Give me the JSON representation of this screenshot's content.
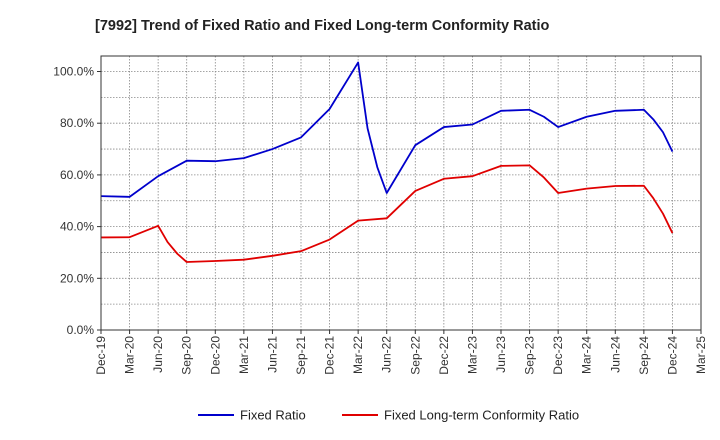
{
  "chart_data": {
    "type": "line",
    "title": "[7992]  Trend of Fixed Ratio and Fixed Long-term Conformity Ratio",
    "xlabel": "",
    "ylabel": "",
    "x_tick_labels": [
      "Dec-19",
      "Mar-20",
      "Jun-20",
      "Sep-20",
      "Dec-20",
      "Mar-21",
      "Jun-21",
      "Sep-21",
      "Dec-21",
      "Mar-22",
      "Jun-22",
      "Sep-22",
      "Dec-22",
      "Mar-23",
      "Jun-23",
      "Sep-23",
      "Dec-23",
      "Mar-24",
      "Jun-24",
      "Sep-24",
      "Dec-24",
      "Mar-25"
    ],
    "y_tick_labels": [
      "0.0%",
      "20.0%",
      "40.0%",
      "60.0%",
      "80.0%",
      "100.0%"
    ],
    "y_ticks": [
      0,
      20,
      40,
      60,
      80,
      100
    ],
    "ylim": [
      0,
      106
    ],
    "grid": true,
    "legend_position": "bottom",
    "series": [
      {
        "name": "Fixed Ratio",
        "color": "#0000cc",
        "points": [
          {
            "x": 0,
            "y": 51.8
          },
          {
            "x": 1,
            "y": 51.5
          },
          {
            "x": 2,
            "y": 59.5
          },
          {
            "x": 3,
            "y": 65.5
          },
          {
            "x": 4,
            "y": 65.3
          },
          {
            "x": 5,
            "y": 66.5
          },
          {
            "x": 6,
            "y": 70.0
          },
          {
            "x": 7,
            "y": 74.5
          },
          {
            "x": 8,
            "y": 85.5
          },
          {
            "x": 9,
            "y": 103.5
          },
          {
            "x": 9.33,
            "y": 78.0
          },
          {
            "x": 9.67,
            "y": 63.0
          },
          {
            "x": 10,
            "y": 53.0
          },
          {
            "x": 11,
            "y": 71.5
          },
          {
            "x": 12,
            "y": 78.5
          },
          {
            "x": 13,
            "y": 79.5
          },
          {
            "x": 14,
            "y": 84.8
          },
          {
            "x": 15,
            "y": 85.2
          },
          {
            "x": 15.5,
            "y": 82.5
          },
          {
            "x": 16,
            "y": 78.5
          },
          {
            "x": 17,
            "y": 82.5
          },
          {
            "x": 18,
            "y": 84.8
          },
          {
            "x": 19,
            "y": 85.2
          },
          {
            "x": 19.33,
            "y": 81.5
          },
          {
            "x": 19.67,
            "y": 76.5
          },
          {
            "x": 20,
            "y": 69.0
          }
        ]
      },
      {
        "name": "Fixed Long-term Conformity Ratio",
        "color": "#e00000",
        "points": [
          {
            "x": 0,
            "y": 35.8
          },
          {
            "x": 1,
            "y": 35.9
          },
          {
            "x": 2,
            "y": 40.3
          },
          {
            "x": 2.33,
            "y": 34.0
          },
          {
            "x": 2.67,
            "y": 29.5
          },
          {
            "x": 3,
            "y": 26.3
          },
          {
            "x": 4,
            "y": 26.7
          },
          {
            "x": 5,
            "y": 27.2
          },
          {
            "x": 6,
            "y": 28.7
          },
          {
            "x": 7,
            "y": 30.5
          },
          {
            "x": 8,
            "y": 35.0
          },
          {
            "x": 9,
            "y": 42.3
          },
          {
            "x": 10,
            "y": 43.2
          },
          {
            "x": 11,
            "y": 53.8
          },
          {
            "x": 12,
            "y": 58.5
          },
          {
            "x": 13,
            "y": 59.5
          },
          {
            "x": 14,
            "y": 63.5
          },
          {
            "x": 15,
            "y": 63.7
          },
          {
            "x": 15.5,
            "y": 59.0
          },
          {
            "x": 16,
            "y": 53.0
          },
          {
            "x": 17,
            "y": 54.7
          },
          {
            "x": 18,
            "y": 55.7
          },
          {
            "x": 19,
            "y": 55.8
          },
          {
            "x": 19.33,
            "y": 51.0
          },
          {
            "x": 19.67,
            "y": 45.0
          },
          {
            "x": 20,
            "y": 37.5
          }
        ]
      }
    ]
  }
}
